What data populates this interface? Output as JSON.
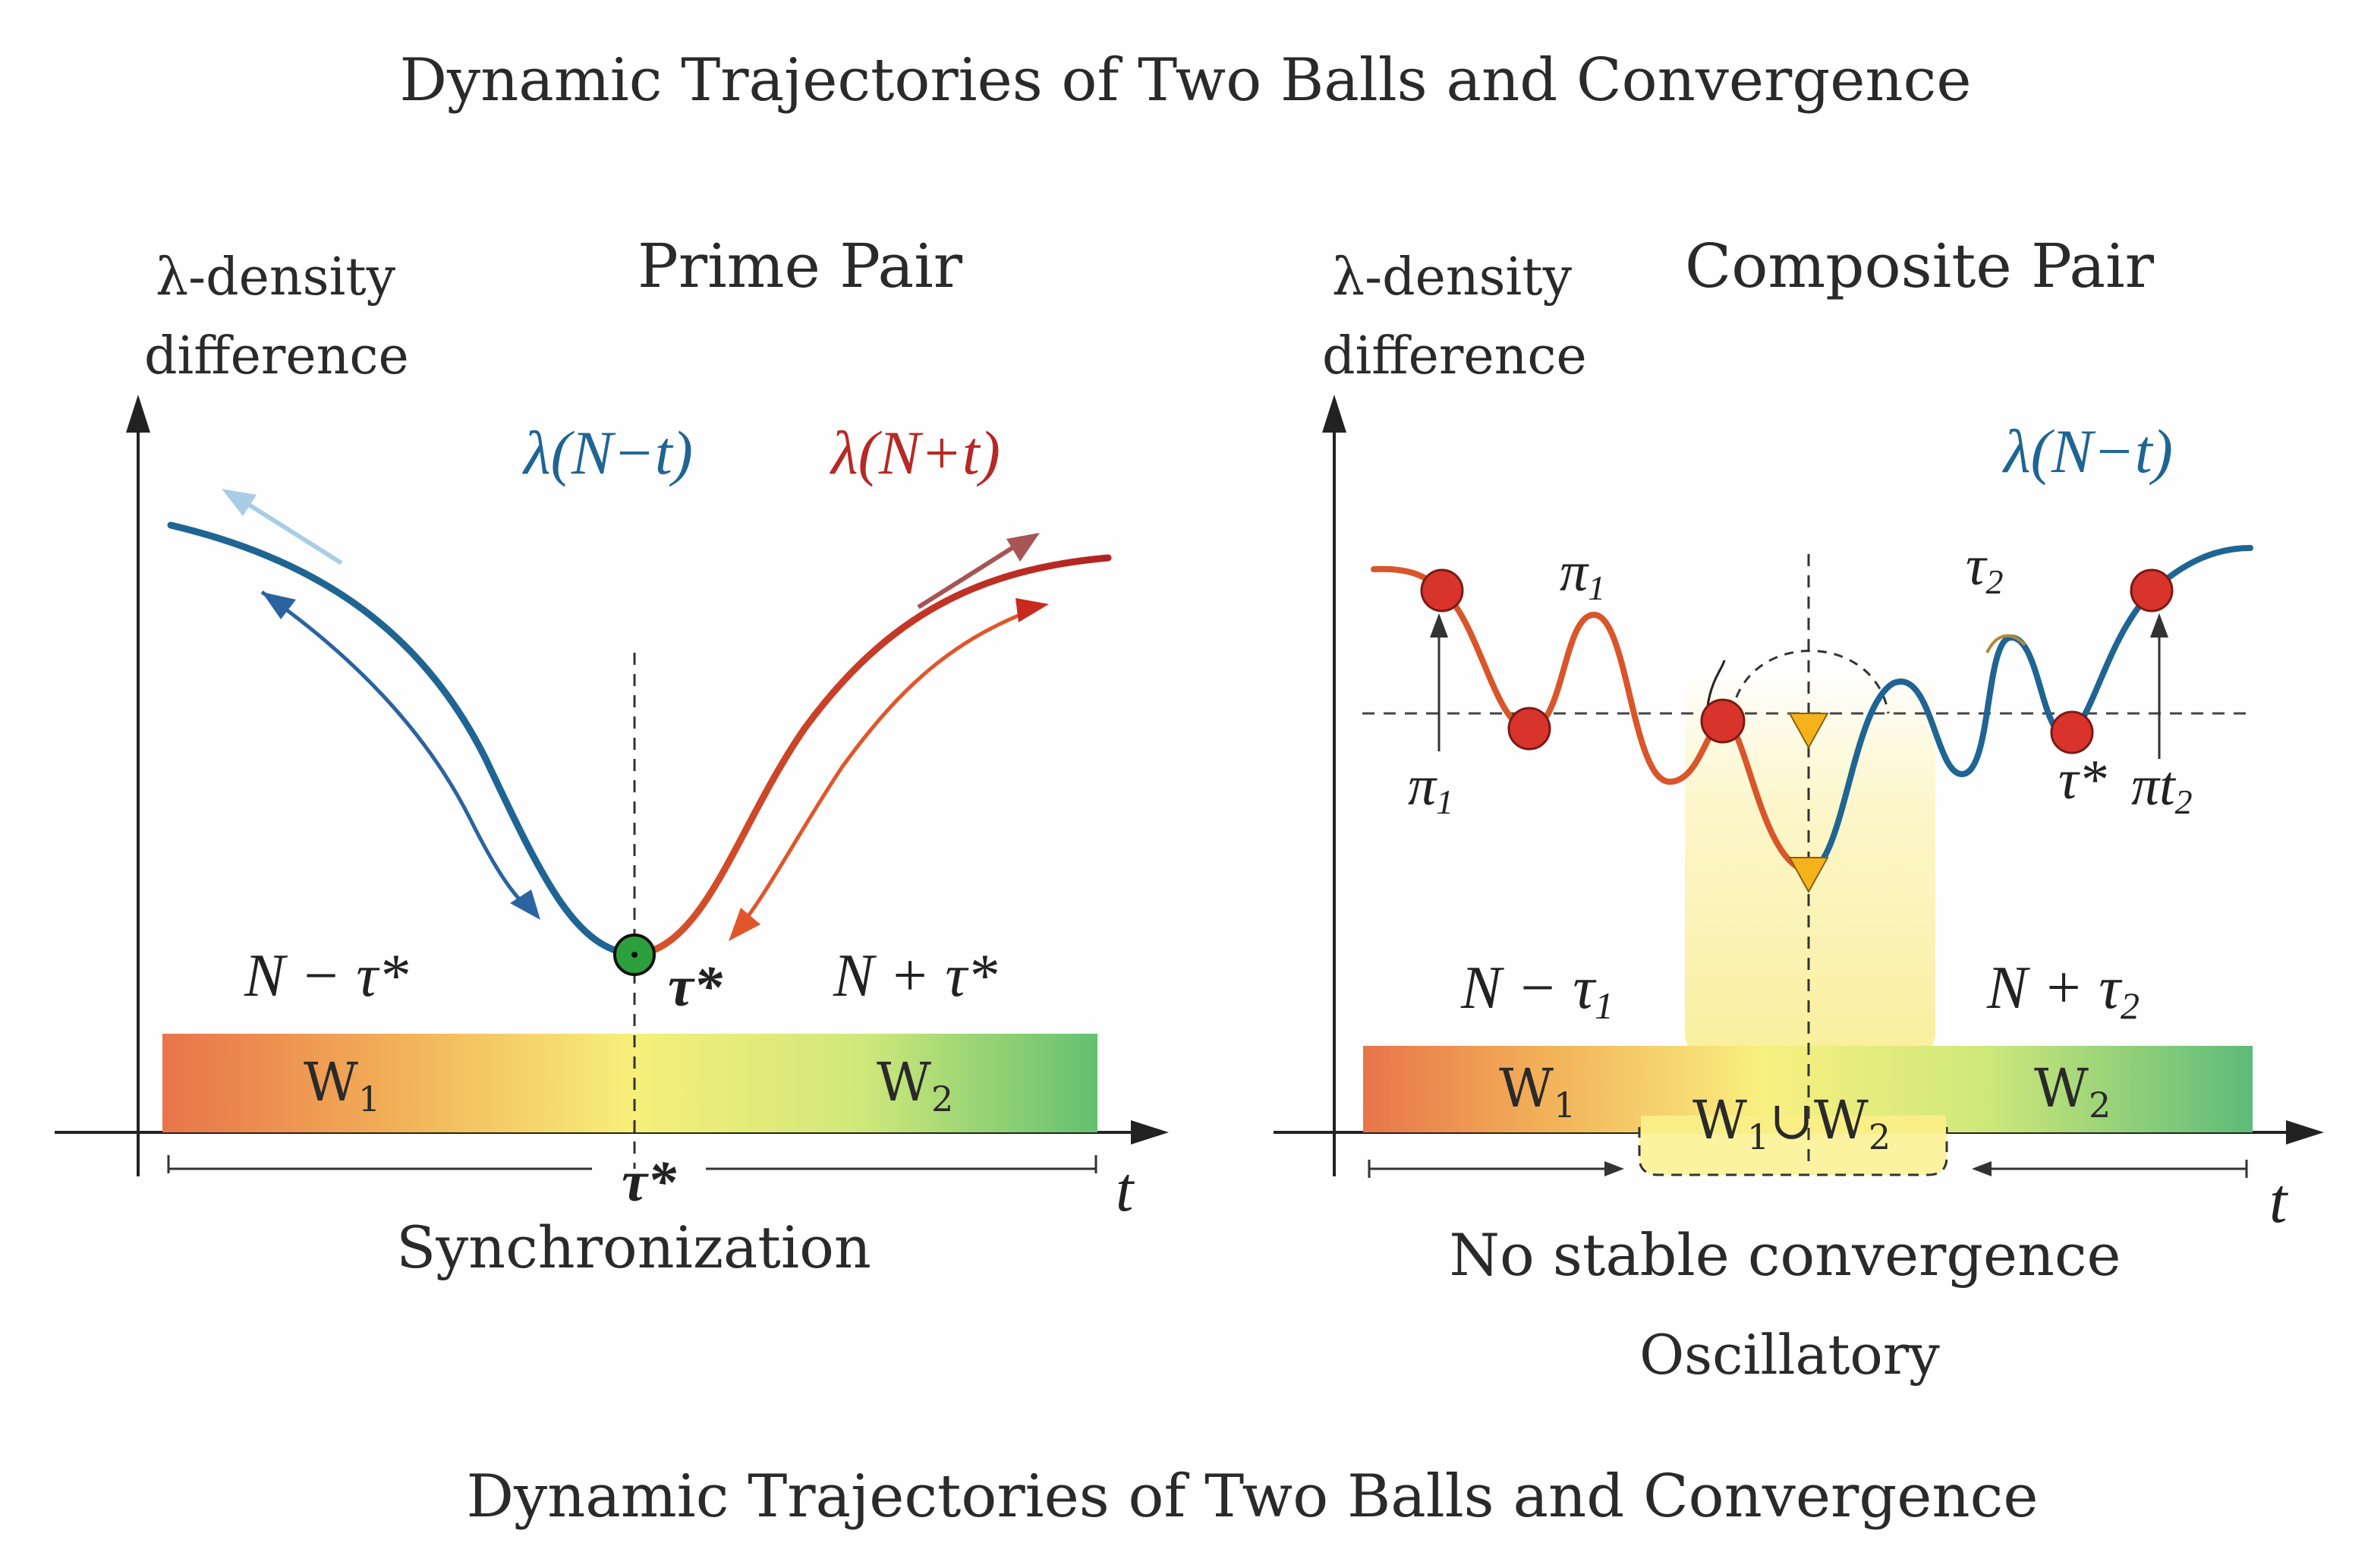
{
  "title_top": "Dynamic Trajectories of Two Balls and Convergence",
  "title_bottom": "Dynamic Trajectories of Two Balls and Convergence",
  "left_panel": {
    "y_axis_line1": "λ-density",
    "y_axis_line2": "difference",
    "heading": "Prime Pair",
    "curve_label_blue": "λ(N−t)",
    "curve_label_red": "λ(N+t)",
    "minimum_label": "τ*",
    "left_region_label": "N − τ*",
    "right_region_label": "N + τ*",
    "window1_label": "W",
    "window1_sub": "1",
    "window2_label": "W",
    "window2_sub": "2",
    "axis_center_label": "τ*",
    "x_axis_label": "t",
    "caption": "Synchronization"
  },
  "right_panel": {
    "y_axis_line1": "λ-density",
    "y_axis_line2": "difference",
    "heading": "Composite Pair",
    "curve_label_blue": "λ(N−t)",
    "peak_label_1": "π",
    "peak_label_1_sub": "1",
    "peak_label_2": "τ",
    "peak_label_2_sub": "2",
    "marker_label_pi1": "π",
    "marker_label_pi1_sub": "1",
    "marker_label_tau": "τ*",
    "marker_label_pit2": "πt",
    "marker_label_pit2_sub": "2",
    "left_region_label": "N − τ",
    "left_region_sub": "1",
    "right_region_label": "N + τ",
    "right_region_sub": "2",
    "window1_label": "W",
    "window1_sub": "1",
    "window_union_label": "W",
    "window_union_sub1": "1",
    "window_union_mid": "∪W",
    "window_union_sub2": "2",
    "window2_label": "W",
    "window2_sub": "2",
    "x_axis_label": "t",
    "caption_line1": "No stable convergence",
    "caption_line2": "Oscillatory"
  },
  "colors": {
    "blue": "#1f6593",
    "red": "#c0302a",
    "orange": "#d9552a",
    "green": "#4fb86a",
    "ball_red": "#d9342b",
    "ball_green": "#2ca03c",
    "triangle": "#f5b21a"
  }
}
